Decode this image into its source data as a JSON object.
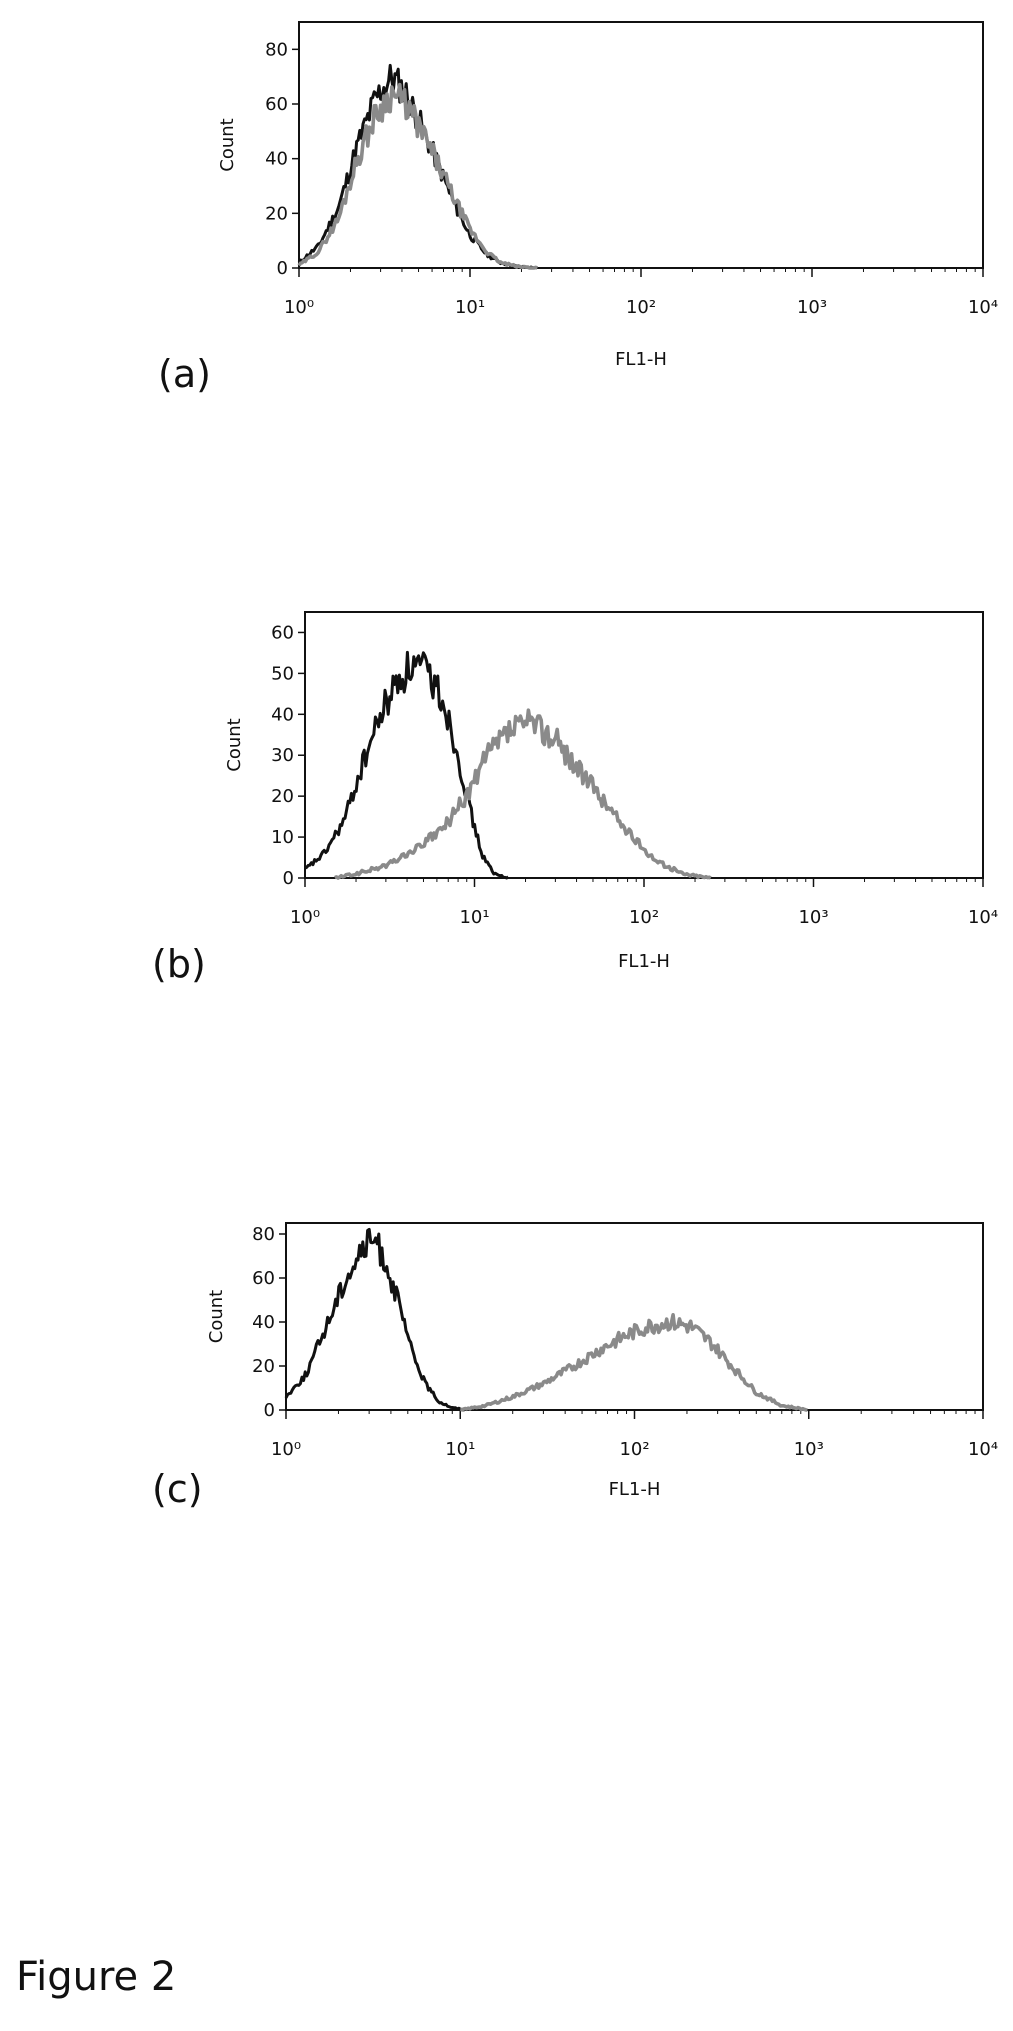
{
  "figure_caption": "Figure 2",
  "chart_data": [
    {
      "type": "line",
      "panel_label": "(a)",
      "xlabel": "FL1-H",
      "ylabel": "Count",
      "x_scale": "log",
      "xlim": [
        1,
        10000
      ],
      "ylim": [
        0,
        90
      ],
      "x_tick_labels": [
        "10⁰",
        "10¹",
        "10²",
        "10³",
        "10⁴"
      ],
      "y_ticks": [
        0,
        20,
        40,
        60,
        80
      ],
      "grid": false,
      "colors": {
        "control": "#111111",
        "sample": "#8a8a8a"
      },
      "series": [
        {
          "values_x": [
            1,
            1.3,
            1.7,
            2.2,
            2.8,
            3.5,
            4.2,
            5.2,
            6.5,
            8,
            10,
            12.5,
            15,
            19,
            25
          ],
          "values_y": [
            2,
            8,
            22,
            45,
            62,
            70,
            64,
            52,
            38,
            24,
            12,
            5,
            2,
            0.5,
            0
          ]
        },
        {
          "values_x": [
            1,
            1.3,
            1.7,
            2.2,
            2.8,
            3.5,
            4.2,
            5.2,
            6.5,
            8,
            10,
            12.5,
            15,
            19,
            25
          ],
          "values_y": [
            1,
            6,
            18,
            40,
            56,
            64,
            60,
            50,
            38,
            26,
            14,
            6,
            2,
            0.5,
            0
          ]
        }
      ]
    },
    {
      "type": "line",
      "panel_label": "(b)",
      "xlabel": "FL1-H",
      "ylabel": "Count",
      "x_scale": "log",
      "xlim": [
        1,
        10000
      ],
      "ylim": [
        0,
        65
      ],
      "x_tick_labels": [
        "10⁰",
        "10¹",
        "10²",
        "10³",
        "10⁴"
      ],
      "y_ticks": [
        0,
        10,
        20,
        30,
        40,
        50,
        60
      ],
      "grid": false,
      "colors": {
        "control": "#111111",
        "sample": "#8a8a8a"
      },
      "series": [
        {
          "values_x": [
            1,
            1.3,
            1.7,
            2.2,
            2.8,
            3.5,
            4.3,
            5.3,
            6.5,
            8,
            9.5,
            11,
            13,
            16
          ],
          "values_y": [
            2,
            6,
            14,
            28,
            40,
            48,
            52,
            50,
            44,
            30,
            16,
            6,
            1,
            0
          ]
        },
        {
          "values_x": [
            1.5,
            2,
            3,
            4.5,
            6.5,
            9,
            12,
            16,
            22,
            30,
            42,
            60,
            85,
            120,
            170,
            250
          ],
          "values_y": [
            0,
            1,
            3,
            7,
            12,
            20,
            30,
            36,
            38,
            34,
            26,
            18,
            10,
            4,
            1,
            0
          ]
        }
      ]
    },
    {
      "type": "line",
      "panel_label": "(c)",
      "xlabel": "FL1-H",
      "ylabel": "Count",
      "x_scale": "log",
      "xlim": [
        1,
        10000
      ],
      "ylim": [
        0,
        85
      ],
      "x_tick_labels": [
        "10⁰",
        "10¹",
        "10²",
        "10³",
        "10⁴"
      ],
      "y_ticks": [
        0,
        20,
        40,
        60,
        80
      ],
      "grid": false,
      "colors": {
        "control": "#111111",
        "sample": "#8a8a8a"
      },
      "series": [
        {
          "values_x": [
            1,
            1.3,
            1.7,
            2.2,
            2.7,
            3.2,
            3.8,
            4.5,
            5.3,
            6.3,
            7.5,
            9,
            11
          ],
          "values_y": [
            6,
            16,
            38,
            60,
            72,
            78,
            66,
            46,
            26,
            12,
            4,
            1,
            0
          ]
        },
        {
          "values_x": [
            10,
            14,
            20,
            30,
            45,
            65,
            90,
            120,
            160,
            210,
            280,
            380,
            500,
            700,
            1000
          ],
          "values_y": [
            0,
            2,
            6,
            12,
            20,
            28,
            34,
            38,
            40,
            38,
            30,
            18,
            8,
            2,
            0
          ]
        }
      ]
    }
  ]
}
